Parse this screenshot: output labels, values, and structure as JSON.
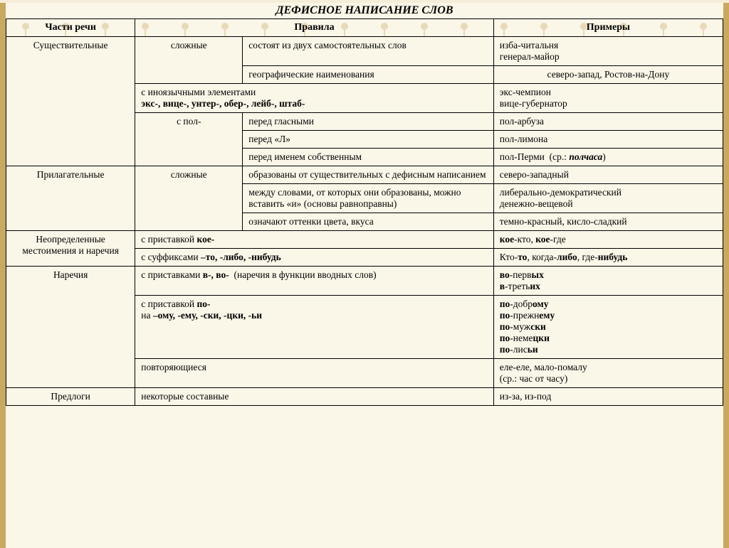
{
  "title": "ДЕФИСНОЕ НАПИСАНИЕ СЛОВ",
  "headers": {
    "col1": "Части речи",
    "col2": "Правила",
    "col3": "Примеры"
  },
  "noun": {
    "label": "Существительные",
    "complex": "сложные",
    "r1_rule": "состоят из двух самостоятельных слов",
    "r1_ex": "изба-читальня\nгенерал-майор",
    "r2_rule": "географические наименования",
    "r2_ex": "северо-запад, Ростов-на-Дону",
    "r3_rule_html": "с иноязычными элементами<br><b>экс-, вице-, унтер-, обер-, лейб-, штаб-</b>",
    "r3_ex": "экс-чемпион\nвице-губернатор",
    "pol": "с пол-",
    "r4_rule": "перед гласными",
    "r4_ex": "пол-арбуза",
    "r5_rule": "перед «Л»",
    "r5_ex": "пол-лимона",
    "r6_rule": "перед именем собственным",
    "r6_ex_html": "пол-Перми&nbsp;&nbsp;(ср.: <b><i>полчаса</i></b>)"
  },
  "adj": {
    "label": "Прилагательные",
    "complex": "сложные",
    "r1_rule": "образованы от существительных с дефисным написанием",
    "r1_ex": "северо-западный",
    "r2_rule": "между словами, от которых они образованы, можно вставить «и» (основы равноправны)",
    "r2_ex": "либерально-демократический\nденежно-вещевой",
    "r3_rule": "означают оттенки цвета, вкуса",
    "r3_ex": "темно-красный, кисло-сладкий"
  },
  "pron": {
    "label": "Неопределенные местоимения и наречия",
    "r1_rule_html": "с приставкой <b>кое-</b>",
    "r1_ex_html": "<b>кое</b>-кто, <b>кое</b>-где",
    "r2_rule_html": "с суффиксами <b>–то, -либо, -нибудь</b>",
    "r2_ex_html": "Кто-<b>то</b>, когда-<b>либо</b>, где-<b>нибудь</b>"
  },
  "adv": {
    "label": "Наречия",
    "r1_rule_html": "с приставками <b>в-, во-</b>&nbsp;&nbsp;(наречия в функции вводных слов)",
    "r1_ex_html": "<b>во</b>-перв<b>ых</b><br><b>в</b>-треть<b>их</b>",
    "r2_rule_html": "с приставкой <b>по-</b><br>на <b>–ому, -ему, -ски, -цки, -ьи</b>",
    "r2_ex_html": "<b>по</b>-добр<b>ому</b><br><b>по</b>-прежн<b>ему</b><br><b>по</b>-муж<b>ски</b><br><b>по</b>-неме<b>цки</b><br><b>по</b>-лис<b>ьи</b>",
    "r3_rule": "повторяющиеся",
    "r3_ex_html": "еле-еле, мало-помалу<br>(ср.: час от часу)"
  },
  "prep": {
    "label": "Предлоги",
    "r1_rule": "некоторые составные",
    "r1_ex": "из-за, из-под"
  }
}
